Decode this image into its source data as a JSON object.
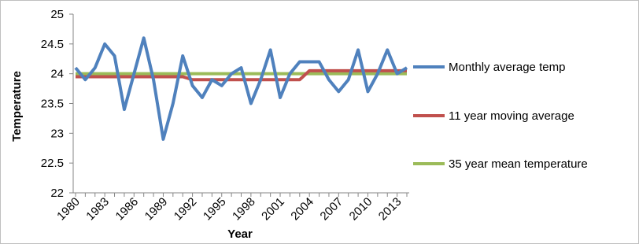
{
  "chart_data": {
    "type": "line",
    "xlabel": "Year",
    "ylabel": "Temperature",
    "categories": [
      "1980",
      null,
      null,
      "1983",
      null,
      null,
      "1986",
      null,
      null,
      "1989",
      null,
      null,
      "1992",
      null,
      null,
      "1995",
      null,
      null,
      "1998",
      null,
      null,
      "2001",
      null,
      null,
      "2004",
      null,
      null,
      "2007",
      null,
      null,
      "2010",
      null,
      null,
      "2013",
      null
    ],
    "series": [
      {
        "name": "Monthly average temp",
        "color": "#4f81bd",
        "values": [
          24.1,
          23.9,
          24.1,
          24.5,
          24.3,
          23.4,
          24.0,
          24.6,
          23.9,
          22.9,
          23.5,
          24.3,
          23.8,
          23.6,
          23.9,
          23.8,
          24.0,
          24.1,
          23.5,
          23.9,
          24.4,
          23.6,
          24.0,
          24.2,
          24.2,
          24.2,
          23.9,
          23.7,
          23.9,
          24.4,
          23.7,
          24.0,
          24.4,
          24.0,
          24.1
        ]
      },
      {
        "name": "11 year moving average",
        "color": "#c0504d",
        "values": [
          23.95,
          23.95,
          23.95,
          23.95,
          23.95,
          23.95,
          23.95,
          23.95,
          23.95,
          23.95,
          23.95,
          23.95,
          23.9,
          23.9,
          23.9,
          23.9,
          23.9,
          23.9,
          23.9,
          23.9,
          23.9,
          23.9,
          23.9,
          23.9,
          24.05,
          24.05,
          24.05,
          24.05,
          24.05,
          24.05,
          24.05,
          24.05,
          24.05,
          24.05,
          24.05
        ]
      },
      {
        "name": "35 year mean temperature",
        "color": "#9bbb59",
        "values": [
          24,
          24,
          24,
          24,
          24,
          24,
          24,
          24,
          24,
          24,
          24,
          24,
          24,
          24,
          24,
          24,
          24,
          24,
          24,
          24,
          24,
          24,
          24,
          24,
          24,
          24,
          24,
          24,
          24,
          24,
          24,
          24,
          24,
          24,
          24
        ]
      }
    ],
    "ylim": [
      22,
      25
    ],
    "yticks": [
      22,
      22.5,
      23,
      23.5,
      24,
      24.5,
      25
    ],
    "legend": "right"
  }
}
